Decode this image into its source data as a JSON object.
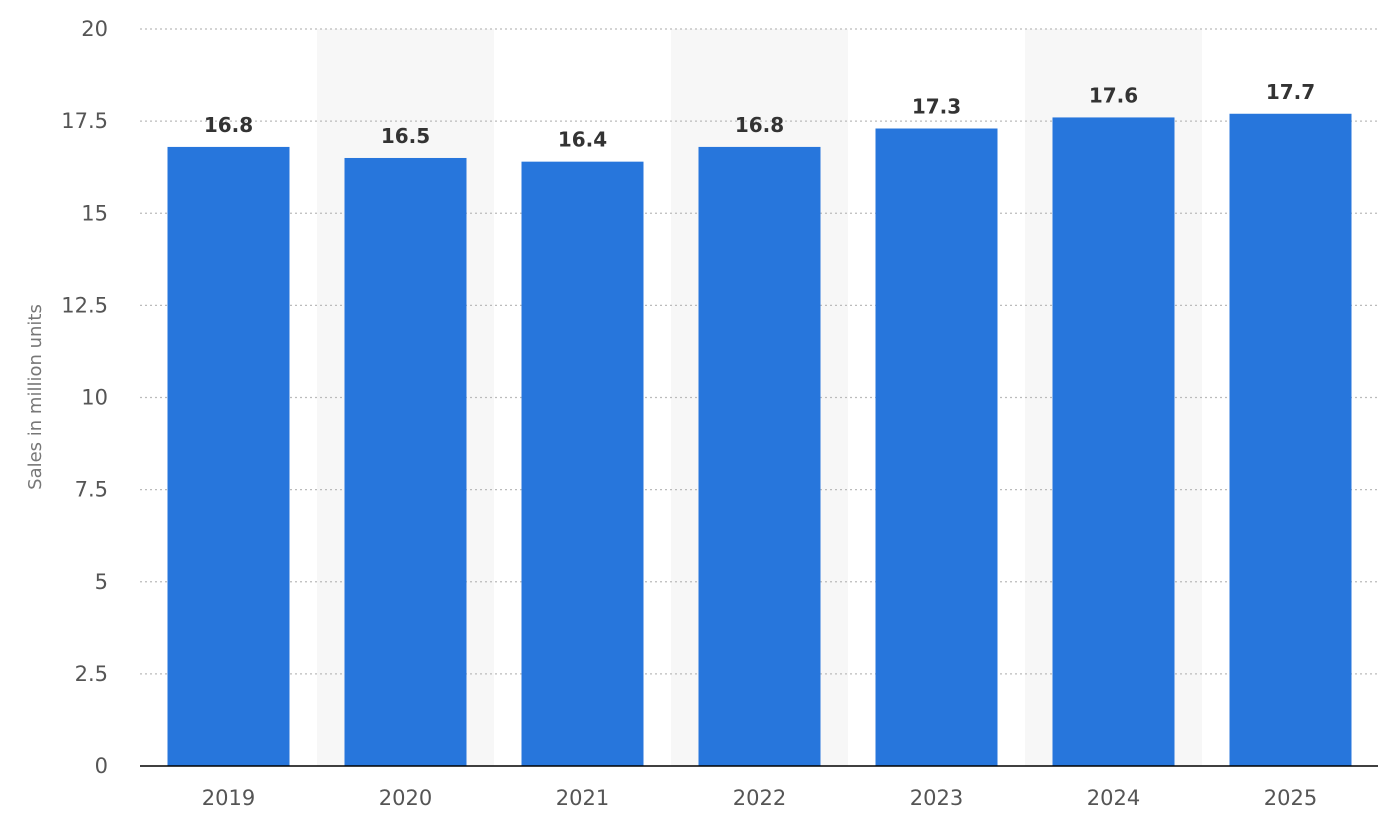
{
  "chart_data": {
    "type": "bar",
    "categories": [
      "2019",
      "2020",
      "2021",
      "2022",
      "2023",
      "2024",
      "2025"
    ],
    "values": [
      16.8,
      16.5,
      16.4,
      16.8,
      17.3,
      17.6,
      17.7
    ],
    "value_labels": [
      "16.8",
      "16.5",
      "16.4",
      "16.8",
      "17.3",
      "17.6",
      "17.7"
    ],
    "title": "",
    "xlabel": "",
    "ylabel": "Sales in million units",
    "ylim": [
      0,
      20
    ],
    "yticks": [
      0,
      2.5,
      5,
      7.5,
      10,
      12.5,
      15,
      17.5,
      20
    ],
    "ytick_labels": [
      "0",
      "2.5",
      "5",
      "7.5",
      "10",
      "12.5",
      "15",
      "17.5",
      "20"
    ],
    "grid": true,
    "grid_style": "dotted",
    "legend": "none",
    "colors": {
      "bar": "#2776dc",
      "alt_band": "#f7f7f7",
      "grid": "#bbbbbb",
      "axis": "#000000"
    }
  }
}
